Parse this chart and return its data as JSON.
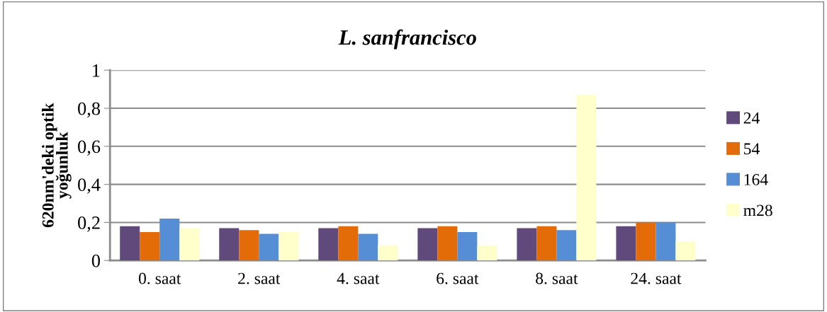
{
  "chart_data": {
    "type": "bar",
    "title": "L. sanfrancisco",
    "ylabel": "620nm'deki optik\nyoğunluk",
    "categories": [
      "0. saat",
      "2. saat",
      "4. saat",
      "6. saat",
      "8. saat",
      "24. saat"
    ],
    "series": [
      {
        "name": "24",
        "color": "#604a7b",
        "values": [
          0.18,
          0.17,
          0.17,
          0.17,
          0.17,
          0.18
        ]
      },
      {
        "name": "54",
        "color": "#e36c09",
        "values": [
          0.15,
          0.16,
          0.18,
          0.18,
          0.18,
          0.2
        ]
      },
      {
        "name": "164",
        "color": "#558ed5",
        "values": [
          0.22,
          0.14,
          0.14,
          0.15,
          0.16,
          0.2
        ]
      },
      {
        "name": "m28",
        "color": "#ffffcc",
        "values": [
          0.17,
          0.15,
          0.08,
          0.08,
          0.87,
          0.1
        ]
      }
    ],
    "ylim": [
      0,
      1
    ],
    "yticks": [
      {
        "value": 0,
        "label": "0"
      },
      {
        "value": 0.2,
        "label": "0,2"
      },
      {
        "value": 0.4,
        "label": "0,4"
      },
      {
        "value": 0.6,
        "label": "0,6"
      },
      {
        "value": 0.8,
        "label": "0,8"
      },
      {
        "value": 1,
        "label": "1"
      }
    ],
    "grid": "y",
    "legend": "right"
  }
}
